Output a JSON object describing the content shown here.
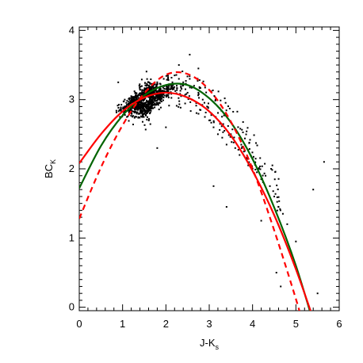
{
  "chart_data": {
    "type": "scatter",
    "title": "",
    "xlabel": "J-K",
    "xlabel_sub": "s",
    "ylabel": "BC",
    "ylabel_sub": "K",
    "xlim": [
      0,
      6
    ],
    "ylim": [
      -0.05,
      4.05
    ],
    "x_ticks": [
      0,
      1,
      2,
      3,
      4,
      5,
      6
    ],
    "y_ticks": [
      0,
      1,
      2,
      3,
      4
    ],
    "x_tick_labels": [
      "0",
      "1",
      "2",
      "3",
      "4",
      "5",
      "6"
    ],
    "y_tick_labels": [
      "0",
      "1",
      "2",
      "3",
      "4"
    ],
    "grid": false,
    "legend": false,
    "colors": {
      "points": "#000000",
      "green_fit": "#006400",
      "red_fits": "#ff0000"
    },
    "series": [
      {
        "kind": "scatter",
        "description_points": [
          [
            0.9,
            3.25
          ],
          [
            1.05,
            3.0
          ],
          [
            1.1,
            2.75
          ],
          [
            1.15,
            2.85
          ],
          [
            1.2,
            2.9
          ],
          [
            1.2,
            3.05
          ],
          [
            1.25,
            3.0
          ],
          [
            1.3,
            3.1
          ],
          [
            1.3,
            2.95
          ],
          [
            1.35,
            3.05
          ],
          [
            1.35,
            2.9
          ],
          [
            1.4,
            3.0
          ],
          [
            1.4,
            3.15
          ],
          [
            1.45,
            3.05
          ],
          [
            1.45,
            2.95
          ],
          [
            1.5,
            3.1
          ],
          [
            1.5,
            3.0
          ],
          [
            1.55,
            3.05
          ],
          [
            1.55,
            3.2
          ],
          [
            1.6,
            3.1
          ],
          [
            1.6,
            2.95
          ],
          [
            1.65,
            3.05
          ],
          [
            1.65,
            3.15
          ],
          [
            1.7,
            3.1
          ],
          [
            1.7,
            3.2
          ],
          [
            1.75,
            3.0
          ],
          [
            1.8,
            3.1
          ],
          [
            1.8,
            3.25
          ],
          [
            1.85,
            3.15
          ],
          [
            1.9,
            3.05
          ],
          [
            1.95,
            3.2
          ],
          [
            2.0,
            3.1
          ],
          [
            2.05,
            3.3
          ],
          [
            2.1,
            3.15
          ],
          [
            2.15,
            3.25
          ],
          [
            2.2,
            3.35
          ],
          [
            2.25,
            3.2
          ],
          [
            2.3,
            3.3
          ],
          [
            2.35,
            3.05
          ],
          [
            2.4,
            3.25
          ],
          [
            2.45,
            3.15
          ],
          [
            2.5,
            3.1
          ],
          [
            2.55,
            3.3
          ],
          [
            2.6,
            3.0
          ],
          [
            2.65,
            3.2
          ],
          [
            2.7,
            2.95
          ],
          [
            2.75,
            3.1
          ],
          [
            2.8,
            2.85
          ],
          [
            2.85,
            3.0
          ],
          [
            2.9,
            2.75
          ],
          [
            2.95,
            2.9
          ],
          [
            3.0,
            2.7
          ],
          [
            3.05,
            2.8
          ],
          [
            3.1,
            2.6
          ],
          [
            3.15,
            2.75
          ],
          [
            3.2,
            2.5
          ],
          [
            3.25,
            2.65
          ],
          [
            3.3,
            2.45
          ],
          [
            3.35,
            2.55
          ],
          [
            3.4,
            2.35
          ],
          [
            3.5,
            2.5
          ],
          [
            3.6,
            2.3
          ],
          [
            3.7,
            2.2
          ],
          [
            3.8,
            2.25
          ],
          [
            3.9,
            2.05
          ],
          [
            4.0,
            2.15
          ],
          [
            4.1,
            1.95
          ],
          [
            4.2,
            1.85
          ],
          [
            4.3,
            1.9
          ],
          [
            4.4,
            1.75
          ],
          [
            4.5,
            1.6
          ],
          [
            4.6,
            1.45
          ],
          [
            4.7,
            1.35
          ],
          [
            4.8,
            1.2
          ],
          [
            5.0,
            0.95
          ],
          [
            4.55,
            0.5
          ],
          [
            4.65,
            0.3
          ],
          [
            5.4,
            1.7
          ],
          [
            5.65,
            2.1
          ],
          [
            5.5,
            0.2
          ],
          [
            3.1,
            1.75
          ],
          [
            3.4,
            1.45
          ],
          [
            2.0,
            2.6
          ],
          [
            1.8,
            2.3
          ],
          [
            2.55,
            3.65
          ],
          [
            2.3,
            3.5
          ],
          [
            1.95,
            3.3
          ],
          [
            2.75,
            3.45
          ],
          [
            4.2,
            1.25
          ]
        ]
      },
      {
        "kind": "fit",
        "style": "solid",
        "color": "#006400",
        "x": [
          0,
          0.5,
          1,
          1.5,
          2,
          2.5,
          3,
          3.5,
          4,
          4.5,
          5,
          5.5,
          5.55
        ],
        "y": [
          1.72,
          2.33,
          2.77,
          3.06,
          3.21,
          3.21,
          3.02,
          2.67,
          2.14,
          1.44,
          0.6,
          -0.43,
          -0.55
        ]
      },
      {
        "kind": "fit",
        "style": "solid",
        "color": "#ff0000",
        "x": [
          0,
          0.5,
          1,
          1.5,
          2,
          2.5,
          3,
          3.5,
          4,
          4.5,
          5,
          5.5,
          5.55
        ],
        "y": [
          2.08,
          2.5,
          2.83,
          3.03,
          3.1,
          3.03,
          2.83,
          2.48,
          1.97,
          1.33,
          0.55,
          -0.35,
          -0.47
        ]
      },
      {
        "kind": "fit",
        "style": "dashed",
        "color": "#ff0000",
        "x": [
          0,
          0.5,
          1,
          1.5,
          2,
          2.5,
          3,
          3.5,
          4,
          4.5,
          5,
          5.15,
          5.2
        ],
        "y": [
          1.28,
          2.02,
          2.63,
          3.09,
          3.36,
          3.37,
          3.14,
          2.68,
          2.0,
          1.11,
          0.12,
          -0.22,
          -0.35
        ]
      }
    ]
  }
}
